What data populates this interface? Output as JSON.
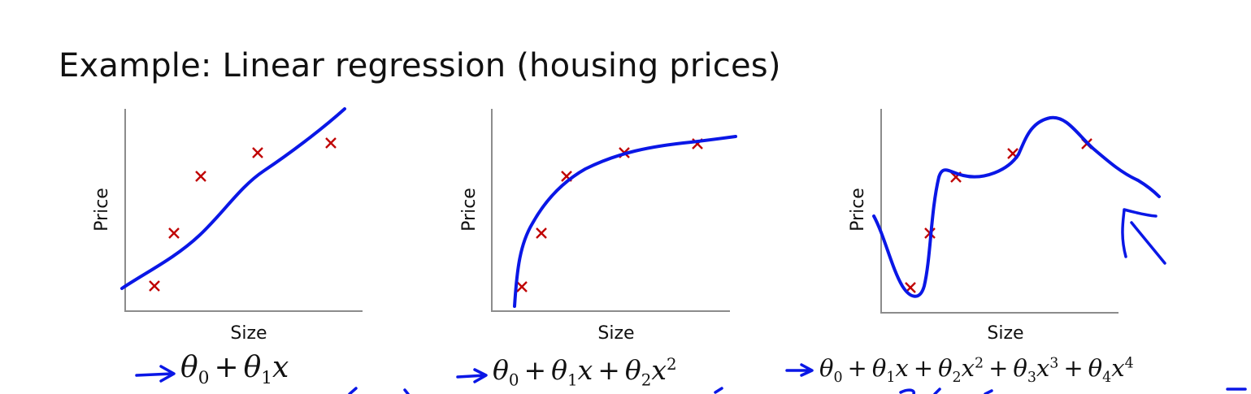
{
  "title": "Example: Linear regression (housing prices)",
  "panels": [
    {
      "ylabel": "Price",
      "xlabel": "Size",
      "formula": [
        "θ",
        "0",
        "+",
        "θ",
        "1",
        "x"
      ]
    },
    {
      "ylabel": "Price",
      "xlabel": "Size",
      "formula": [
        "θ",
        "0",
        "+",
        "θ",
        "1",
        "x",
        "+",
        "θ",
        "2",
        "x",
        "2"
      ]
    },
    {
      "ylabel": "Price",
      "xlabel": "Size",
      "formula": [
        "θ",
        "0",
        "+",
        "θ",
        "1",
        "x",
        "+",
        "θ",
        "2",
        "x",
        "2",
        "+",
        "θ",
        "3",
        "x",
        "3",
        "+",
        "θ",
        "4",
        "x",
        "4"
      ]
    }
  ],
  "colors": {
    "data_point": "#c00000",
    "ink": "#0a17e6",
    "axis": "#8c8c8c"
  }
}
